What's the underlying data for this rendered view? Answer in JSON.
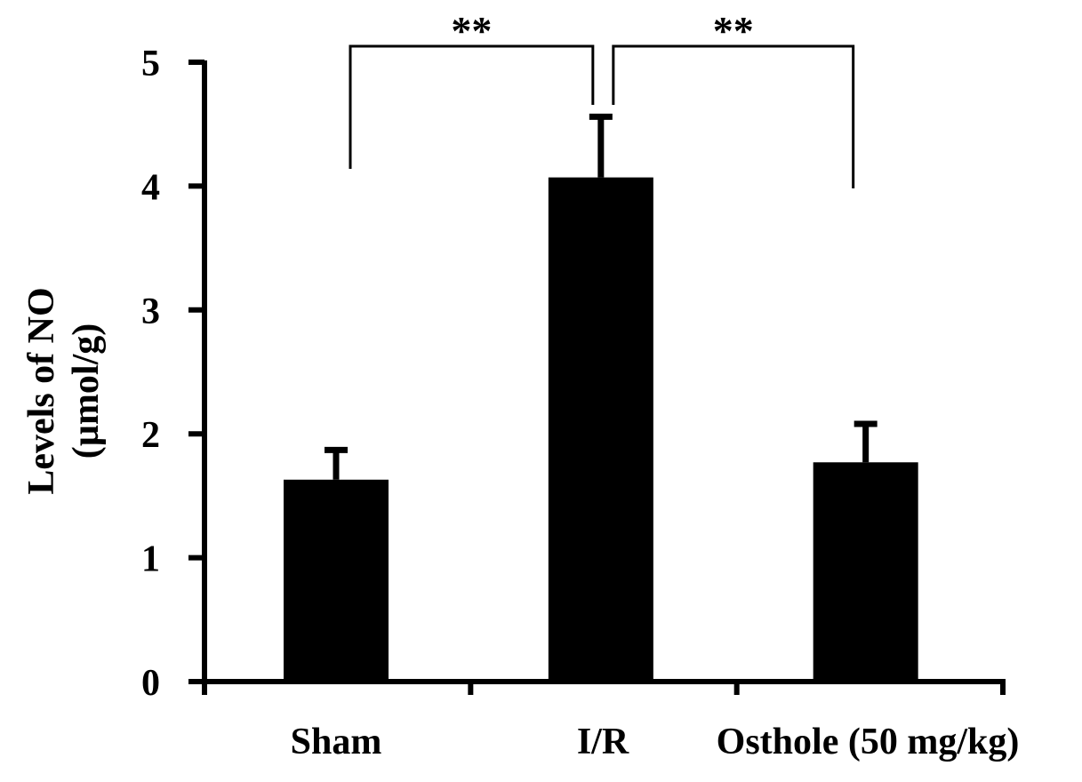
{
  "chart_data": {
    "type": "bar",
    "categories": [
      "Sham",
      "I/R",
      "Osthole (50 mg/kg)"
    ],
    "values": [
      1.63,
      4.07,
      1.77
    ],
    "error_plus": [
      0.24,
      0.49,
      0.31
    ],
    "ylabel_line1": "Levels of NO",
    "ylabel_line2": "(µmol/g)",
    "ylim": [
      0,
      5
    ],
    "yticks": [
      "0",
      "1",
      "2",
      "3",
      "4",
      "5"
    ],
    "grid": false,
    "bar_color": "#000000",
    "significance": [
      {
        "from": 0,
        "to": 1,
        "label": "**"
      },
      {
        "from": 1,
        "to": 2,
        "label": "**"
      }
    ]
  }
}
